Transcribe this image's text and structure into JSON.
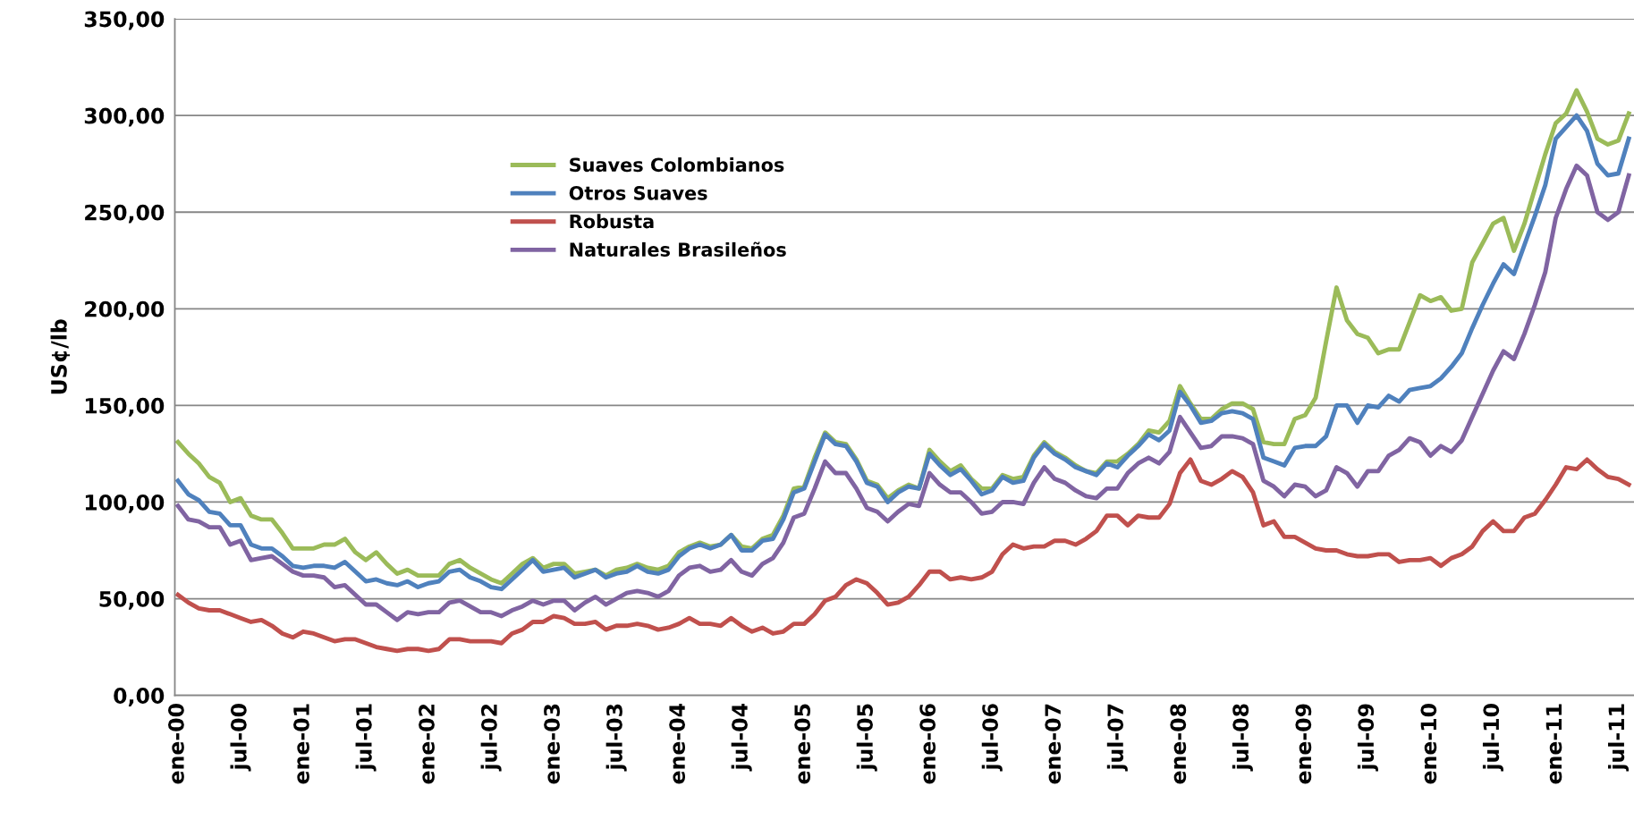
{
  "chart_data": {
    "type": "line",
    "ylabel": "US¢/lb",
    "categories": [
      "ene-00",
      null,
      null,
      null,
      null,
      null,
      "jul-00",
      null,
      null,
      null,
      null,
      null,
      "ene-01",
      null,
      null,
      null,
      null,
      null,
      "jul-01",
      null,
      null,
      null,
      null,
      null,
      "ene-02",
      null,
      null,
      null,
      null,
      null,
      "jul-02",
      null,
      null,
      null,
      null,
      null,
      "ene-03",
      null,
      null,
      null,
      null,
      null,
      "jul-03",
      null,
      null,
      null,
      null,
      null,
      "ene-04",
      null,
      null,
      null,
      null,
      null,
      "jul-04",
      null,
      null,
      null,
      null,
      null,
      "ene-05",
      null,
      null,
      null,
      null,
      null,
      "jul-05",
      null,
      null,
      null,
      null,
      null,
      "ene-06",
      null,
      null,
      null,
      null,
      null,
      "jul-06",
      null,
      null,
      null,
      null,
      null,
      "ene-07",
      null,
      null,
      null,
      null,
      null,
      "jul-07",
      null,
      null,
      null,
      null,
      null,
      "ene-08",
      null,
      null,
      null,
      null,
      null,
      "jul-08",
      null,
      null,
      null,
      null,
      null,
      "ene-09",
      null,
      null,
      null,
      null,
      null,
      "jul-09",
      null,
      null,
      null,
      null,
      null,
      "ene-10",
      null,
      null,
      null,
      null,
      null,
      "jul-10",
      null,
      null,
      null,
      null,
      null,
      "ene-11",
      null,
      null,
      null,
      null,
      null,
      "jul-11",
      null
    ],
    "ylim": [
      0,
      350
    ],
    "yticks": [
      {
        "value": 0,
        "label": "0,00"
      },
      {
        "value": 50,
        "label": "50,00"
      },
      {
        "value": 100,
        "label": "100,00"
      },
      {
        "value": 150,
        "label": "150,00"
      },
      {
        "value": 200,
        "label": "200,00"
      },
      {
        "value": 250,
        "label": "250,00"
      },
      {
        "value": 300,
        "label": "300,00"
      },
      {
        "value": 350,
        "label": "350,00"
      }
    ],
    "grid": "y",
    "legend": "top left",
    "marker": "none",
    "line_style": "solid",
    "series": [
      {
        "name": "Suaves Colombianos",
        "color": "#9bbb59",
        "values": [
          131,
          125,
          120,
          113,
          110,
          100,
          102,
          93,
          91,
          91,
          84,
          76,
          76,
          76,
          78,
          78,
          81,
          74,
          70,
          74,
          68,
          63,
          65,
          62,
          62,
          62,
          68,
          70,
          66,
          63,
          60,
          58,
          63,
          68,
          71,
          66,
          68,
          68,
          63,
          64,
          65,
          62,
          65,
          66,
          68,
          66,
          65,
          67,
          74,
          77,
          79,
          77,
          78,
          83,
          77,
          76,
          81,
          83,
          93,
          107,
          108,
          123,
          136,
          131,
          130,
          122,
          111,
          109,
          102,
          106,
          109,
          107,
          127,
          121,
          116,
          119,
          112,
          107,
          107,
          114,
          112,
          113,
          124,
          131,
          126,
          123,
          119,
          116,
          115,
          121,
          121,
          125,
          130,
          137,
          136,
          142,
          160,
          151,
          143,
          143,
          148,
          151,
          151,
          148,
          131,
          130,
          130,
          143,
          145,
          154,
          183,
          211,
          194,
          187,
          185,
          177,
          179,
          179,
          193,
          207,
          204,
          206,
          199,
          200,
          224,
          234,
          244,
          247,
          230,
          244,
          262,
          280,
          296,
          301,
          313,
          302,
          288,
          285,
          287,
          301
        ]
      },
      {
        "name": "Otros Suaves",
        "color": "#4f81bd",
        "values": [
          111,
          104,
          101,
          95,
          94,
          88,
          88,
          78,
          76,
          76,
          72,
          67,
          66,
          67,
          67,
          66,
          69,
          64,
          59,
          60,
          58,
          57,
          59,
          56,
          58,
          59,
          64,
          65,
          61,
          59,
          56,
          55,
          60,
          65,
          70,
          64,
          65,
          66,
          61,
          63,
          65,
          61,
          63,
          64,
          67,
          64,
          63,
          65,
          72,
          76,
          78,
          76,
          78,
          83,
          75,
          75,
          80,
          81,
          91,
          105,
          107,
          121,
          135,
          130,
          129,
          121,
          110,
          108,
          100,
          105,
          108,
          107,
          125,
          119,
          114,
          117,
          111,
          104,
          106,
          113,
          110,
          111,
          123,
          130,
          125,
          122,
          118,
          116,
          114,
          120,
          118,
          124,
          129,
          135,
          132,
          137,
          157,
          150,
          141,
          142,
          146,
          147,
          146,
          143,
          123,
          121,
          119,
          128,
          129,
          129,
          134,
          150,
          150,
          141,
          150,
          149,
          155,
          152,
          158,
          159,
          160,
          164,
          170,
          177,
          190,
          202,
          213,
          223,
          218,
          233,
          248,
          264,
          288,
          294,
          300,
          292,
          275,
          269,
          270,
          288
        ]
      },
      {
        "name": "Robusta",
        "color": "#c0504d",
        "values": [
          52,
          48,
          45,
          44,
          44,
          42,
          40,
          38,
          39,
          36,
          32,
          30,
          33,
          32,
          30,
          28,
          29,
          29,
          27,
          25,
          24,
          23,
          24,
          24,
          23,
          24,
          29,
          29,
          28,
          28,
          28,
          27,
          32,
          34,
          38,
          38,
          41,
          40,
          37,
          37,
          38,
          34,
          36,
          36,
          37,
          36,
          34,
          35,
          37,
          40,
          37,
          37,
          36,
          40,
          36,
          33,
          35,
          32,
          33,
          37,
          37,
          42,
          49,
          51,
          57,
          60,
          58,
          53,
          47,
          48,
          51,
          57,
          64,
          64,
          60,
          61,
          60,
          61,
          64,
          73,
          78,
          76,
          77,
          77,
          80,
          80,
          78,
          81,
          85,
          93,
          93,
          88,
          93,
          92,
          92,
          99,
          115,
          122,
          111,
          109,
          112,
          116,
          113,
          105,
          88,
          90,
          82,
          82,
          79,
          76,
          75,
          75,
          73,
          72,
          72,
          73,
          73,
          69,
          70,
          70,
          71,
          67,
          71,
          73,
          77,
          85,
          90,
          85,
          85,
          92,
          94,
          101,
          109,
          118,
          117,
          122,
          117,
          113,
          112,
          109
        ]
      },
      {
        "name": "Naturales Brasileños",
        "color": "#8064a2",
        "values": [
          98,
          91,
          90,
          87,
          87,
          78,
          80,
          70,
          71,
          72,
          68,
          64,
          62,
          62,
          61,
          56,
          57,
          52,
          47,
          47,
          43,
          39,
          43,
          42,
          43,
          43,
          48,
          49,
          46,
          43,
          43,
          41,
          44,
          46,
          49,
          47,
          49,
          49,
          44,
          48,
          51,
          47,
          50,
          53,
          54,
          53,
          51,
          54,
          62,
          66,
          67,
          64,
          65,
          70,
          64,
          62,
          68,
          71,
          79,
          92,
          94,
          107,
          121,
          115,
          115,
          107,
          97,
          95,
          90,
          95,
          99,
          98,
          115,
          109,
          105,
          105,
          100,
          94,
          95,
          100,
          100,
          99,
          110,
          118,
          112,
          110,
          106,
          103,
          102,
          107,
          107,
          115,
          120,
          123,
          120,
          126,
          144,
          136,
          128,
          129,
          134,
          134,
          133,
          130,
          111,
          108,
          103,
          109,
          108,
          103,
          106,
          118,
          115,
          108,
          116,
          116,
          124,
          127,
          133,
          131,
          124,
          129,
          126,
          132,
          144,
          156,
          168,
          178,
          174,
          187,
          202,
          219,
          247,
          262,
          274,
          269,
          250,
          246,
          250,
          269
        ]
      }
    ]
  }
}
